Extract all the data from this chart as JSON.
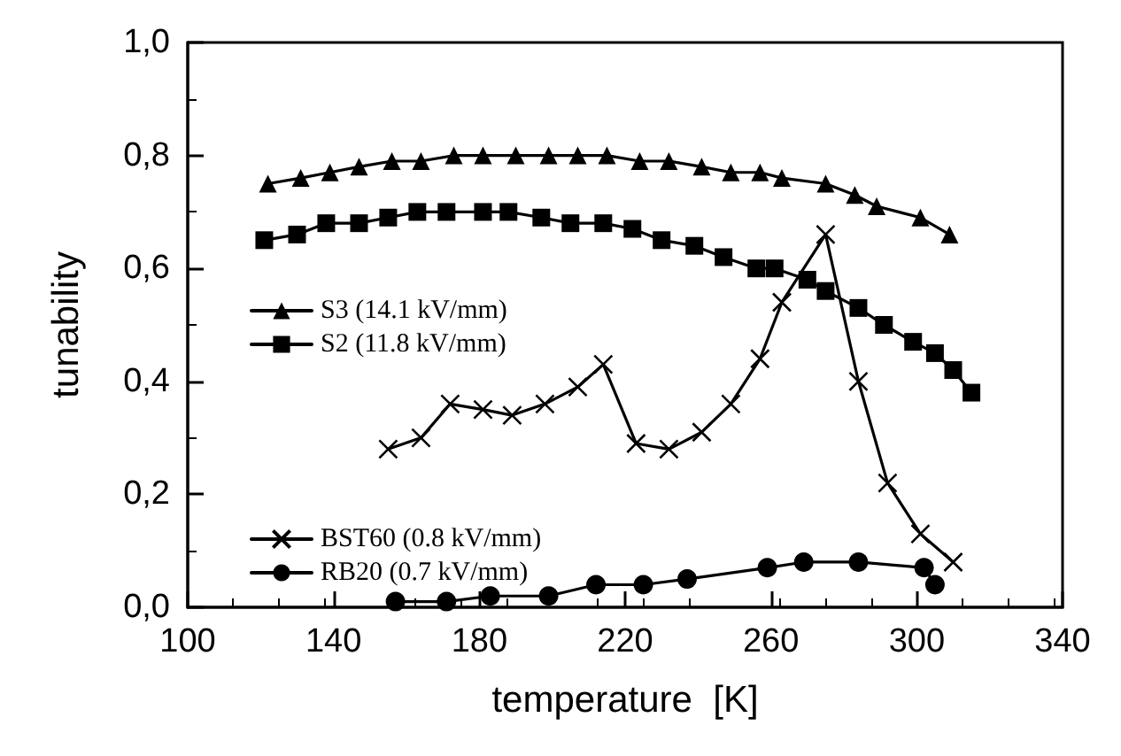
{
  "chart_data": {
    "type": "line",
    "xlabel": "temperature  [K]",
    "ylabel": "tunability",
    "xlim": [
      100,
      340
    ],
    "xticks": [
      100,
      140,
      180,
      220,
      260,
      300,
      340
    ],
    "ylim": [
      0,
      1
    ],
    "yticks": [
      {
        "value": 0,
        "label": "0,0"
      },
      {
        "value": 0.2,
        "label": "0,2"
      },
      {
        "value": 0.4,
        "label": "0,4"
      },
      {
        "value": 0.6,
        "label": "0,6"
      },
      {
        "value": 0.8,
        "label": "0,8"
      },
      {
        "value": 1,
        "label": "1,0"
      }
    ],
    "grid": false,
    "legend": "left",
    "line_style": "solid",
    "series": [
      {
        "name": "S3 (14.1 kV/mm)",
        "color": "#000000",
        "marker": "triangle",
        "x": [
          122,
          131,
          139,
          147,
          156,
          164,
          173,
          181,
          190,
          199,
          207,
          215,
          224,
          232,
          241,
          249,
          257,
          263,
          275,
          283,
          289,
          301,
          309
        ],
        "values": [
          0.75,
          0.76,
          0.77,
          0.78,
          0.79,
          0.79,
          0.8,
          0.8,
          0.8,
          0.8,
          0.8,
          0.8,
          0.79,
          0.79,
          0.78,
          0.77,
          0.77,
          0.76,
          0.75,
          0.73,
          0.71,
          0.69,
          0.66
        ]
      },
      {
        "name": "S2 (11.8 kV/mm)",
        "color": "#000000",
        "marker": "square",
        "x": [
          121,
          130,
          138,
          147,
          155,
          163,
          171,
          181,
          188,
          197,
          205,
          214,
          222,
          230,
          239,
          247,
          256,
          261,
          270,
          275,
          284,
          291,
          299,
          305,
          310,
          315
        ],
        "values": [
          0.65,
          0.66,
          0.68,
          0.68,
          0.69,
          0.7,
          0.7,
          0.7,
          0.7,
          0.69,
          0.68,
          0.68,
          0.67,
          0.65,
          0.64,
          0.62,
          0.6,
          0.6,
          0.58,
          0.56,
          0.53,
          0.5,
          0.47,
          0.45,
          0.42,
          0.38
        ]
      },
      {
        "name": "BST60 (0.8 kV/mm)",
        "color": "#000000",
        "marker": "cross",
        "x": [
          155,
          164,
          172,
          181,
          189,
          198,
          207,
          214,
          223,
          232,
          241,
          249,
          257,
          263,
          275,
          284,
          292,
          301,
          310
        ],
        "values": [
          0.28,
          0.3,
          0.36,
          0.35,
          0.34,
          0.36,
          0.39,
          0.43,
          0.29,
          0.28,
          0.31,
          0.36,
          0.44,
          0.54,
          0.66,
          0.4,
          0.22,
          0.13,
          0.08
        ]
      },
      {
        "name": "RB20 (0.7 kV/mm)",
        "color": "#000000",
        "marker": "circle",
        "x": [
          157,
          171,
          183,
          199,
          212,
          225,
          237,
          259,
          269,
          284,
          302,
          305
        ],
        "values": [
          0.01,
          0.01,
          0.02,
          0.02,
          0.04,
          0.04,
          0.05,
          0.07,
          0.08,
          0.08,
          0.07,
          0.04
        ]
      }
    ]
  }
}
